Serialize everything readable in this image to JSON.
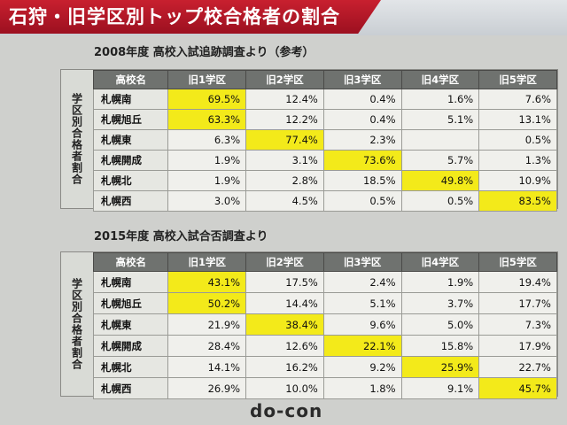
{
  "title": "石狩・旧学区別トップ校合格者の割合",
  "side_label": "学区別合格者割合",
  "headers": [
    "高校名",
    "旧1学区",
    "旧2学区",
    "旧3学区",
    "旧4学区",
    "旧5学区"
  ],
  "sections": [
    {
      "title": "2008年度 高校入試追跡調査より（参考）",
      "rows": [
        {
          "name": "札幌南",
          "values": [
            "69.5%",
            "12.4%",
            "0.4%",
            "1.6%",
            "7.6%"
          ],
          "highlight": 0
        },
        {
          "name": "札幌旭丘",
          "values": [
            "63.3%",
            "12.2%",
            "0.4%",
            "5.1%",
            "13.1%"
          ],
          "highlight": 0
        },
        {
          "name": "札幌東",
          "values": [
            "6.3%",
            "77.4%",
            "2.3%",
            "",
            "0.5%"
          ],
          "highlight": 1
        },
        {
          "name": "札幌開成",
          "values": [
            "1.9%",
            "3.1%",
            "73.6%",
            "5.7%",
            "1.3%"
          ],
          "highlight": 2
        },
        {
          "name": "札幌北",
          "values": [
            "1.9%",
            "2.8%",
            "18.5%",
            "49.8%",
            "10.9%"
          ],
          "highlight": 3
        },
        {
          "name": "札幌西",
          "values": [
            "3.0%",
            "4.5%",
            "0.5%",
            "0.5%",
            "83.5%"
          ],
          "highlight": 4
        }
      ]
    },
    {
      "title": "2015年度 高校入試合否調査より",
      "rows": [
        {
          "name": "札幌南",
          "values": [
            "43.1%",
            "17.5%",
            "2.4%",
            "1.9%",
            "19.4%"
          ],
          "highlight": 0
        },
        {
          "name": "札幌旭丘",
          "values": [
            "50.2%",
            "14.4%",
            "5.1%",
            "3.7%",
            "17.7%"
          ],
          "highlight": 0
        },
        {
          "name": "札幌東",
          "values": [
            "21.9%",
            "38.4%",
            "9.6%",
            "5.0%",
            "7.3%"
          ],
          "highlight": 1
        },
        {
          "name": "札幌開成",
          "values": [
            "28.4%",
            "12.6%",
            "22.1%",
            "15.8%",
            "17.9%"
          ],
          "highlight": 2
        },
        {
          "name": "札幌北",
          "values": [
            "14.1%",
            "16.2%",
            "9.2%",
            "25.9%",
            "22.7%"
          ],
          "highlight": 3
        },
        {
          "name": "札幌西",
          "values": [
            "26.9%",
            "10.0%",
            "1.8%",
            "9.1%",
            "45.7%"
          ],
          "highlight": 4
        }
      ]
    }
  ],
  "logo": "do-con",
  "colors": {
    "banner": "#b8192a",
    "highlight": "#f3ea1a",
    "header": "#6f726f"
  }
}
